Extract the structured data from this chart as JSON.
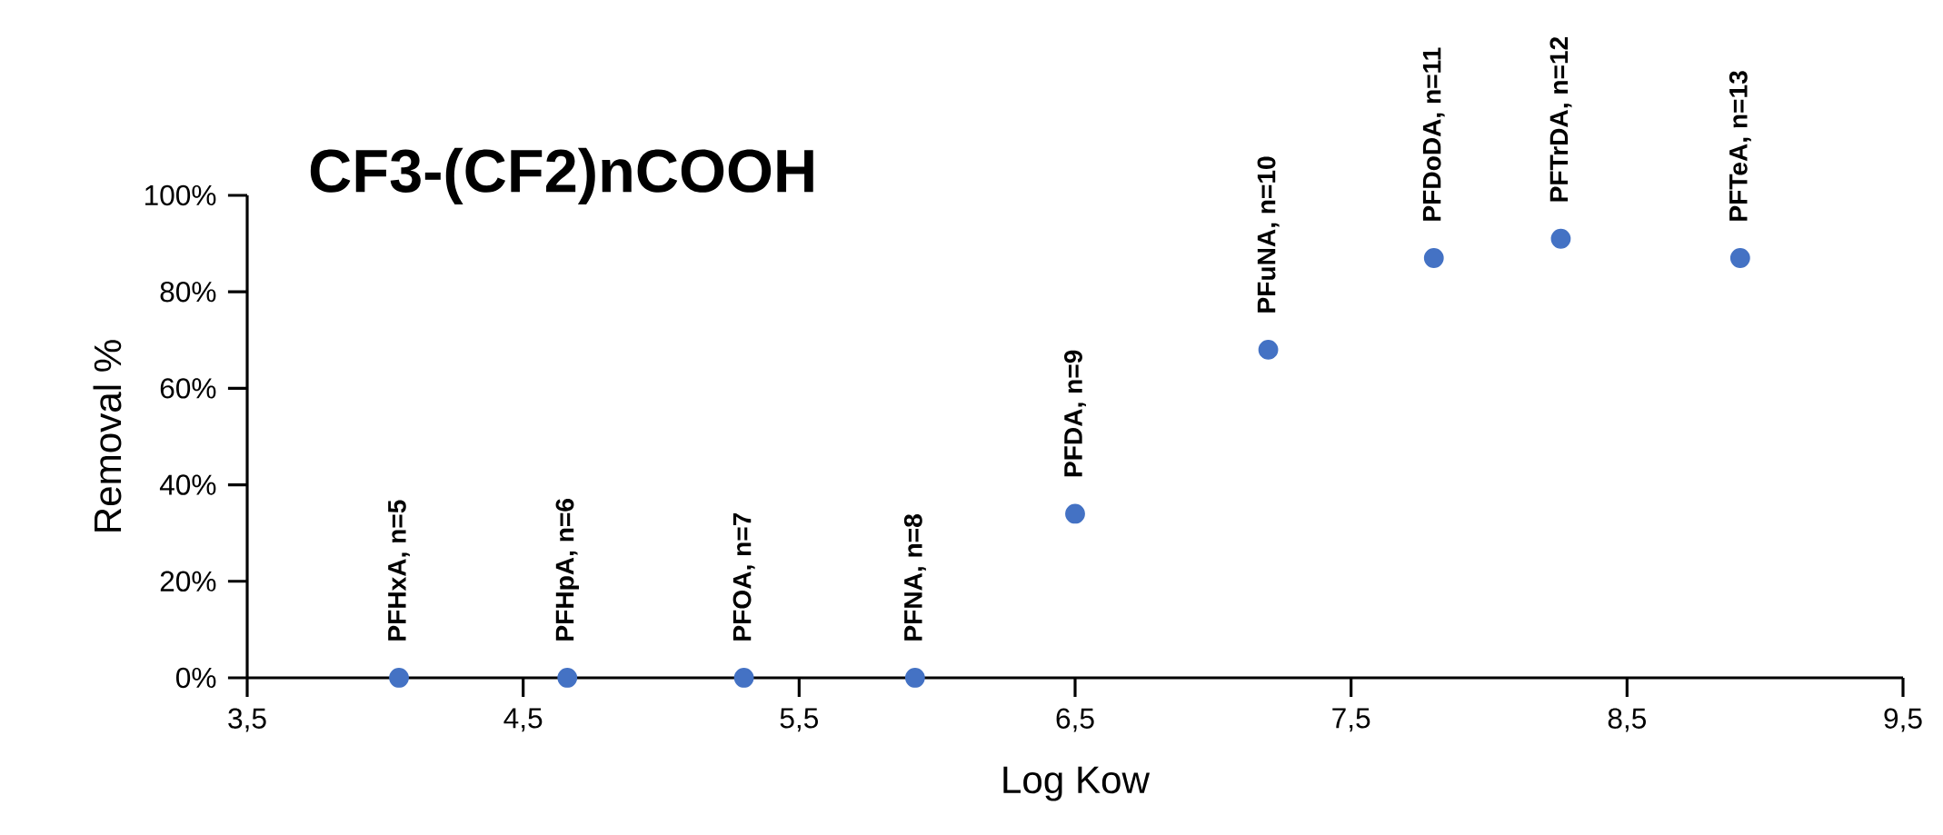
{
  "chart_data": {
    "type": "scatter",
    "title": "CF3-(CF2)nCOOH",
    "xlabel": "Log Kow",
    "ylabel": "Removal %",
    "x": [
      4.05,
      4.66,
      5.3,
      5.92,
      6.5,
      7.2,
      7.8,
      8.26,
      8.91
    ],
    "series": [
      {
        "color": "#4472c4",
        "values": [
          0,
          0,
          0,
          0,
          34,
          68,
          87,
          91,
          87
        ]
      }
    ],
    "marker": "circle",
    "xlim": [
      3.5,
      9.5
    ],
    "xticks": [
      {
        "value": 3.5,
        "label": "3,5"
      },
      {
        "value": 4.5,
        "label": "4,5"
      },
      {
        "value": 5.5,
        "label": "5,5"
      },
      {
        "value": 6.5,
        "label": "6,5"
      },
      {
        "value": 7.5,
        "label": "7,5"
      },
      {
        "value": 8.5,
        "label": "8,5"
      },
      {
        "value": 9.5,
        "label": "9,5"
      }
    ],
    "ylim": [
      0,
      100
    ],
    "yticks": [
      {
        "value": 0,
        "label": "0%"
      },
      {
        "value": 20,
        "label": "20%"
      },
      {
        "value": 40,
        "label": "40%"
      },
      {
        "value": 60,
        "label": "60%"
      },
      {
        "value": 80,
        "label": "80%"
      },
      {
        "value": 100,
        "label": "100%"
      }
    ],
    "annotations": [
      {
        "text": "PFHxA, n=5",
        "x": 4.05,
        "y": 0
      },
      {
        "text": "PFHpA, n=6",
        "x": 4.66,
        "y": 0
      },
      {
        "text": "PFOA, n=7",
        "x": 5.3,
        "y": 0
      },
      {
        "text": "PFNA, n=8",
        "x": 5.92,
        "y": 0
      },
      {
        "text": "PFDA, n=9",
        "x": 6.5,
        "y": 34
      },
      {
        "text": "PFuNA, n=10",
        "x": 7.2,
        "y": 68
      },
      {
        "text": "PFDoDA, n=11",
        "x": 7.8,
        "y": 87
      },
      {
        "text": "PFTrDA, n=12",
        "x": 8.26,
        "y": 91
      },
      {
        "text": "PFTeA, n=13",
        "x": 8.91,
        "y": 87
      }
    ]
  }
}
